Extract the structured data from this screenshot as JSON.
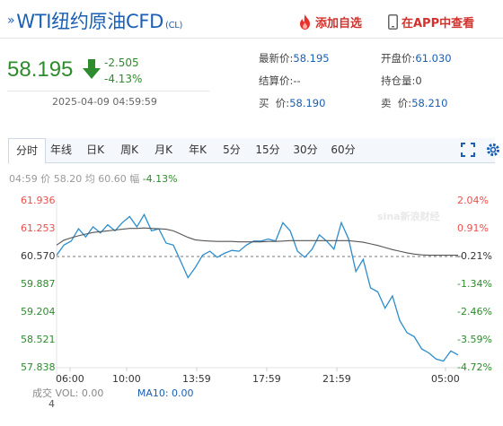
{
  "header": {
    "prefix": "»",
    "title": "WTI纽约原油CFD",
    "code": "(CL)",
    "add_watchlist": "添加自选",
    "app_view": "在APP中查看"
  },
  "quote": {
    "price": "58.195",
    "change": "-2.505",
    "change_pct": "-4.13%",
    "time": "2025-04-09 04:59:59",
    "direction": "down"
  },
  "fields": {
    "latest_label": "最新价:",
    "latest": "58.195",
    "open_label": "开盘价:",
    "open": "61.030",
    "settle_label": "结算价:",
    "settle": "--",
    "oi_label": "持仓量:",
    "oi": "0",
    "bid_label": "买  价:",
    "bid": "58.190",
    "ask_label": "卖  价:",
    "ask": "58.210"
  },
  "tabs": [
    "分时",
    "年线",
    "日K",
    "周K",
    "月K",
    "年K",
    "5分",
    "15分",
    "30分",
    "60分"
  ],
  "active_tab": 0,
  "legend": {
    "time": "04:59",
    "price_label": "价",
    "price": "58.20",
    "avg_label": "均",
    "avg": "60.60",
    "chg_label": "幅",
    "chg": "-4.13%"
  },
  "watermark": "sina新浪财经",
  "volume": {
    "label": "成交",
    "vol_label": "VOL:",
    "vol": "0.00",
    "ma_label": "MA10:",
    "ma": "0.00",
    "count": "4"
  },
  "colors": {
    "up": "#e8504d",
    "down": "#2e8b2e",
    "accent": "#1a5fb4",
    "price_line": "#2c8ccc",
    "avg_line": "#555555"
  },
  "chart_data": {
    "type": "line",
    "ylim": [
      57.838,
      61.936
    ],
    "prev_close": 60.57,
    "y_ticks": [
      "61.936",
      "61.253",
      "60.570",
      "59.887",
      "59.204",
      "58.521",
      "57.838"
    ],
    "pct_ticks": [
      "2.04%",
      "0.91%",
      "-0.21%",
      "-1.34%",
      "-2.46%",
      "-3.59%",
      "-4.72%"
    ],
    "x_ticks": [
      "06:00",
      "10:00",
      "13:59",
      "17:59",
      "21:59",
      "05:00"
    ],
    "series": [
      {
        "values": [
          60.6,
          60.85,
          60.95,
          61.25,
          61.05,
          61.3,
          61.15,
          61.35,
          61.2,
          61.4,
          61.55,
          61.3,
          61.6,
          61.2,
          61.25,
          60.9,
          60.85,
          60.45,
          60.05,
          60.3,
          60.6,
          60.7,
          60.55,
          60.65,
          60.72,
          60.7,
          60.85,
          60.95,
          60.95,
          61.0,
          60.95,
          61.4,
          61.2,
          60.7,
          60.55,
          60.75,
          61.1,
          60.95,
          60.75,
          61.4,
          61.0,
          60.2,
          60.5,
          59.8,
          59.7,
          59.3,
          59.6,
          59.0,
          58.7,
          58.6,
          58.3,
          58.2,
          58.05,
          58.0,
          58.25,
          58.15
        ]
      },
      {
        "values": [
          60.85,
          60.97,
          61.03,
          61.08,
          61.12,
          61.16,
          61.18,
          61.2,
          61.22,
          61.24,
          61.26,
          61.26,
          61.27,
          61.26,
          61.25,
          61.24,
          61.2,
          61.12,
          61.04,
          60.98,
          60.96,
          60.95,
          60.94,
          60.94,
          60.94,
          60.93,
          60.93,
          60.93,
          60.93,
          60.94,
          60.94,
          60.95,
          60.96,
          60.96,
          60.96,
          60.96,
          60.96,
          60.96,
          60.96,
          60.96,
          60.96,
          60.94,
          60.92,
          60.88,
          60.84,
          60.79,
          60.74,
          60.7,
          60.66,
          60.63,
          60.61,
          60.6,
          60.6,
          60.6,
          60.6,
          60.6
        ]
      }
    ]
  }
}
